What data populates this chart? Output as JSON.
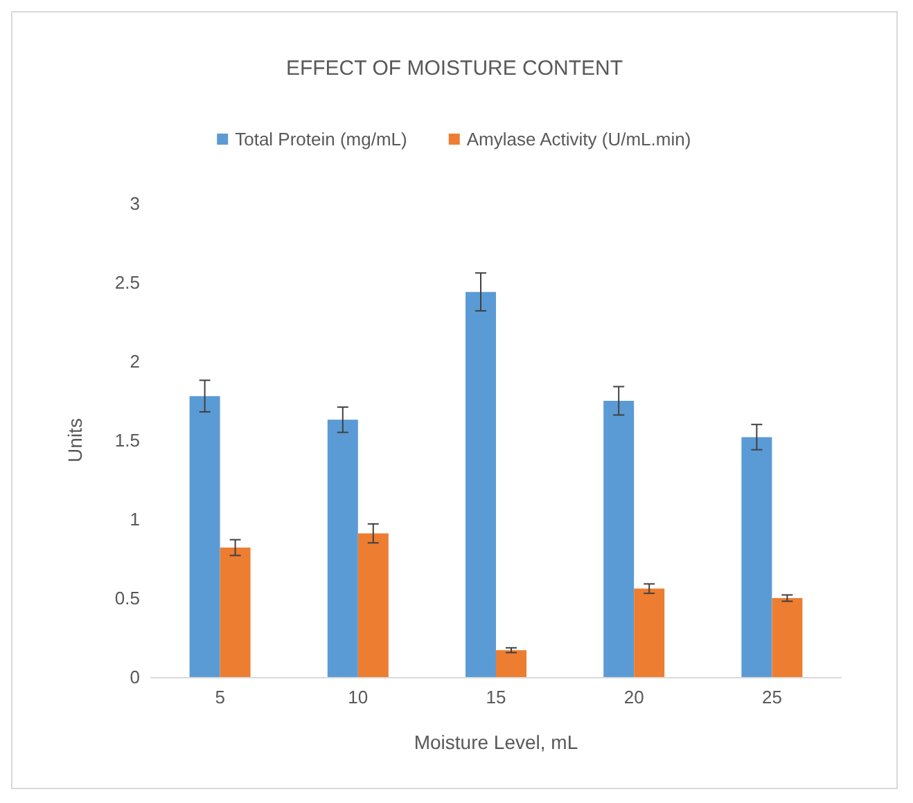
{
  "chart_data": {
    "type": "bar",
    "title": "EFFECT OF MOISTURE CONTENT",
    "xlabel": "Moisture Level, mL",
    "ylabel": "Units",
    "categories": [
      "5",
      "10",
      "15",
      "20",
      "25"
    ],
    "series": [
      {
        "name": "Total Protein (mg/mL)",
        "color": "#5b9bd5",
        "values": [
          1.78,
          1.63,
          2.44,
          1.75,
          1.52
        ],
        "errors": [
          0.1,
          0.08,
          0.12,
          0.09,
          0.08
        ]
      },
      {
        "name": "Amylase Activity (U/mL.min)",
        "color": "#ed7d31",
        "values": [
          0.82,
          0.91,
          0.17,
          0.56,
          0.5
        ],
        "errors": [
          0.05,
          0.06,
          0.015,
          0.03,
          0.02
        ]
      }
    ],
    "ylim": [
      0,
      3
    ],
    "yticks": [
      0,
      0.5,
      1,
      1.5,
      2,
      2.5,
      3
    ],
    "grid": false,
    "legend": "top"
  }
}
